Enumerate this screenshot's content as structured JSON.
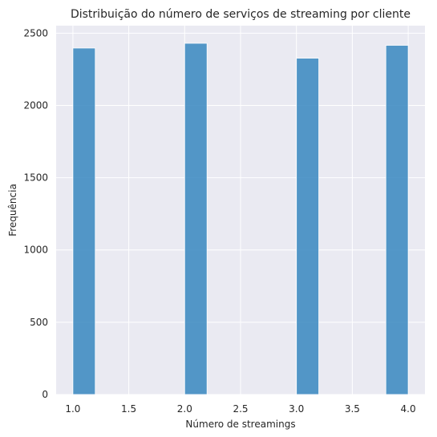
{
  "chart_data": {
    "type": "bar",
    "subtype": "histogram",
    "title": "Distribuição do número de serviços de streaming por cliente",
    "xlabel": "Número de streamings",
    "ylabel": "Frequência",
    "bins": [
      {
        "start": 1.0,
        "end": 1.2,
        "value": 2397
      },
      {
        "start": 1.2,
        "end": 1.4,
        "value": 0
      },
      {
        "start": 1.4,
        "end": 1.6,
        "value": 0
      },
      {
        "start": 1.6,
        "end": 1.8,
        "value": 0
      },
      {
        "start": 1.8,
        "end": 2.0,
        "value": 0
      },
      {
        "start": 2.0,
        "end": 2.2,
        "value": 2430
      },
      {
        "start": 2.2,
        "end": 2.4,
        "value": 0
      },
      {
        "start": 2.4,
        "end": 2.6,
        "value": 0
      },
      {
        "start": 2.6,
        "end": 2.8,
        "value": 0
      },
      {
        "start": 2.8,
        "end": 3.0,
        "value": 0
      },
      {
        "start": 3.0,
        "end": 3.2,
        "value": 2327
      },
      {
        "start": 3.2,
        "end": 3.4,
        "value": 0
      },
      {
        "start": 3.4,
        "end": 3.6,
        "value": 0
      },
      {
        "start": 3.6,
        "end": 3.8,
        "value": 0
      },
      {
        "start": 3.8,
        "end": 4.0,
        "value": 2416
      }
    ],
    "xlim": [
      0.85,
      4.15
    ],
    "ylim": [
      0,
      2552
    ],
    "xticks": [
      1.0,
      1.5,
      2.0,
      2.5,
      3.0,
      3.5,
      4.0
    ],
    "xtick_labels": [
      "1.0",
      "1.5",
      "2.0",
      "2.5",
      "3.0",
      "3.5",
      "4.0"
    ],
    "yticks": [
      0,
      500,
      1000,
      1500,
      2000,
      2500
    ],
    "ytick_labels": [
      "0",
      "500",
      "1000",
      "1500",
      "2000",
      "2500"
    ],
    "grid": true,
    "legend": "none",
    "colors": {
      "bar": "#3787c0",
      "plot_background": "#eaeaf2",
      "grid": "#ffffff",
      "text": "#262626"
    }
  }
}
